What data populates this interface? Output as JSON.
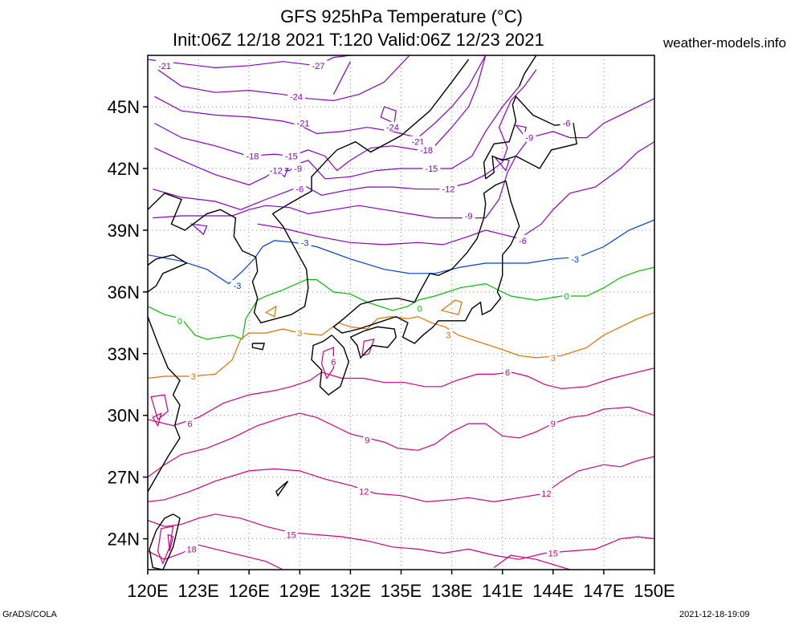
{
  "title": {
    "line1": "GFS 925hPa Temperature (°C)",
    "line2": "Init:06Z 12/18 2021 T:120 Valid:06Z 12/23 2021"
  },
  "source": "weather-models.info",
  "footer": {
    "left": "GrADS/COLA",
    "right": "2021-12-18-19:09"
  },
  "map": {
    "projection": "lat-lon",
    "lon_range": [
      120,
      150
    ],
    "lat_range": [
      22.5,
      47.5
    ],
    "x_ticks": [
      "120E",
      "123E",
      "126E",
      "129E",
      "132E",
      "135E",
      "138E",
      "141E",
      "144E",
      "147E",
      "150E"
    ],
    "y_ticks": [
      "24N",
      "27N",
      "30N",
      "33N",
      "36N",
      "39N",
      "42N",
      "45N"
    ],
    "gridlines": "dotted",
    "contour_interval_c": 3,
    "contour_levels": [
      -27,
      -24,
      -21,
      -18,
      -15,
      -12,
      -9,
      -6,
      -3,
      0,
      3,
      6,
      9,
      12,
      15,
      18
    ],
    "colors": {
      "cold": "#8800c8",
      "minus3": "#0040d0",
      "zero": "#00c000",
      "plus3": "#e07000",
      "warm": "#d00080",
      "coast": "#000000"
    },
    "contour_labels": [
      {
        "text": "-27",
        "lon": 130.1,
        "lat": 47.0
      },
      {
        "text": "-21",
        "lon": 121.0,
        "lat": 47.0
      },
      {
        "text": "-24",
        "lon": 128.8,
        "lat": 45.5
      },
      {
        "text": "-21",
        "lon": 129.2,
        "lat": 44.2
      },
      {
        "text": "-24",
        "lon": 134.5,
        "lat": 44.0
      },
      {
        "text": "-21",
        "lon": 136.0,
        "lat": 43.3
      },
      {
        "text": "-18",
        "lon": 136.5,
        "lat": 42.9
      },
      {
        "text": "-18",
        "lon": 126.2,
        "lat": 42.6
      },
      {
        "text": "-15",
        "lon": 128.5,
        "lat": 42.6
      },
      {
        "text": "-15",
        "lon": 136.8,
        "lat": 42.0
      },
      {
        "text": "-12",
        "lon": 127.6,
        "lat": 41.9
      },
      {
        "text": "-9",
        "lon": 128.9,
        "lat": 42.0
      },
      {
        "text": "-12",
        "lon": 137.8,
        "lat": 41.0
      },
      {
        "text": "-6",
        "lon": 129.0,
        "lat": 41.0
      },
      {
        "text": "-9",
        "lon": 139.0,
        "lat": 39.7
      },
      {
        "text": "-9",
        "lon": 142.6,
        "lat": 43.5
      },
      {
        "text": "-6",
        "lon": 144.8,
        "lat": 44.2
      },
      {
        "text": "-6",
        "lon": 142.2,
        "lat": 38.5
      },
      {
        "text": "-3",
        "lon": 129.3,
        "lat": 38.4
      },
      {
        "text": "-3",
        "lon": 125.3,
        "lat": 36.3
      },
      {
        "text": "-3",
        "lon": 145.3,
        "lat": 37.6
      },
      {
        "text": "0",
        "lon": 121.9,
        "lat": 34.6
      },
      {
        "text": "0",
        "lon": 136.1,
        "lat": 35.2
      },
      {
        "text": "0",
        "lon": 144.8,
        "lat": 35.8
      },
      {
        "text": "3",
        "lon": 129.0,
        "lat": 34.0
      },
      {
        "text": "3",
        "lon": 137.8,
        "lat": 33.9
      },
      {
        "text": "3",
        "lon": 144.0,
        "lat": 32.8
      },
      {
        "text": "3",
        "lon": 122.7,
        "lat": 31.9
      },
      {
        "text": "6",
        "lon": 131.0,
        "lat": 32.6
      },
      {
        "text": "6",
        "lon": 122.5,
        "lat": 29.6
      },
      {
        "text": "6",
        "lon": 141.3,
        "lat": 32.1
      },
      {
        "text": "9",
        "lon": 133.0,
        "lat": 28.8
      },
      {
        "text": "9",
        "lon": 144.0,
        "lat": 29.6
      },
      {
        "text": "12",
        "lon": 132.8,
        "lat": 26.3
      },
      {
        "text": "12",
        "lon": 143.6,
        "lat": 26.2
      },
      {
        "text": "15",
        "lon": 128.5,
        "lat": 24.2
      },
      {
        "text": "15",
        "lon": 144.0,
        "lat": 23.3
      },
      {
        "text": "18",
        "lon": 122.6,
        "lat": 23.5
      }
    ]
  }
}
